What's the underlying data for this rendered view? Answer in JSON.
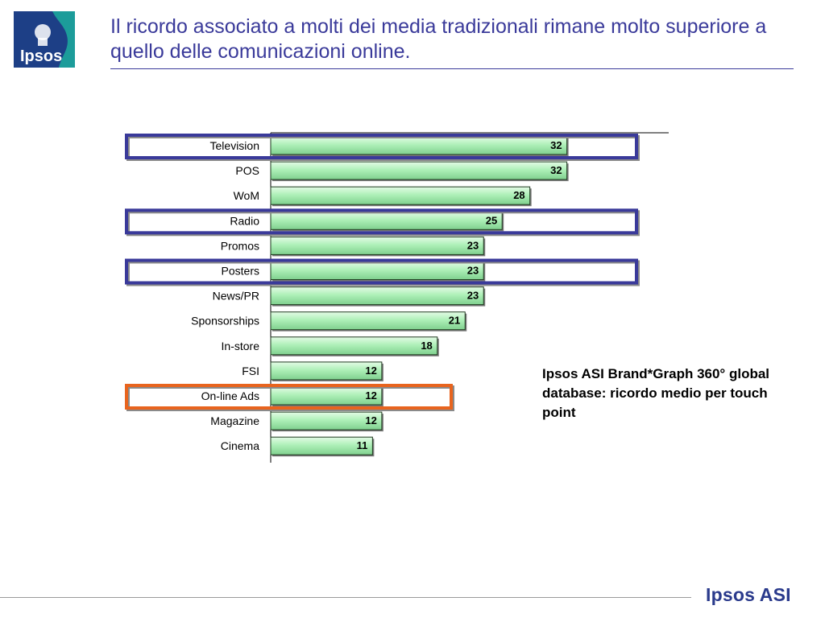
{
  "logo": {
    "text": "Ipsos"
  },
  "title": "Il ricordo associato a molti dei media tradizionali rimane molto superiore a quello delle comunicazioni online.",
  "note": "Ipsos ASI Brand*Graph 360° global database: ricordo medio per touch point",
  "footer": {
    "brand": "Ipsos ASI"
  },
  "colors": {
    "bar_fill": "#aef0b8",
    "highlight_blue": "#3a3a9a",
    "highlight_orange": "#e8641e",
    "title": "#3a3a9a"
  },
  "chart_data": {
    "type": "bar",
    "orientation": "horizontal",
    "categories": [
      "Television",
      "POS",
      "WoM",
      "Radio",
      "Promos",
      "Posters",
      "News/PR",
      "Sponsorships",
      "In-store",
      "FSI",
      "On-line Ads",
      "Magazine",
      "Cinema"
    ],
    "values": [
      32,
      32,
      28,
      25,
      23,
      23,
      23,
      21,
      18,
      12,
      12,
      12,
      11
    ],
    "highlights": [
      {
        "category": "Television",
        "color": "blue"
      },
      {
        "category": "Radio",
        "color": "blue"
      },
      {
        "category": "Posters",
        "color": "blue"
      },
      {
        "category": "On-line Ads",
        "color": "orange"
      }
    ],
    "xlim": [
      0,
      43
    ],
    "grid": false,
    "title": "",
    "xlabel": "",
    "ylabel": ""
  }
}
